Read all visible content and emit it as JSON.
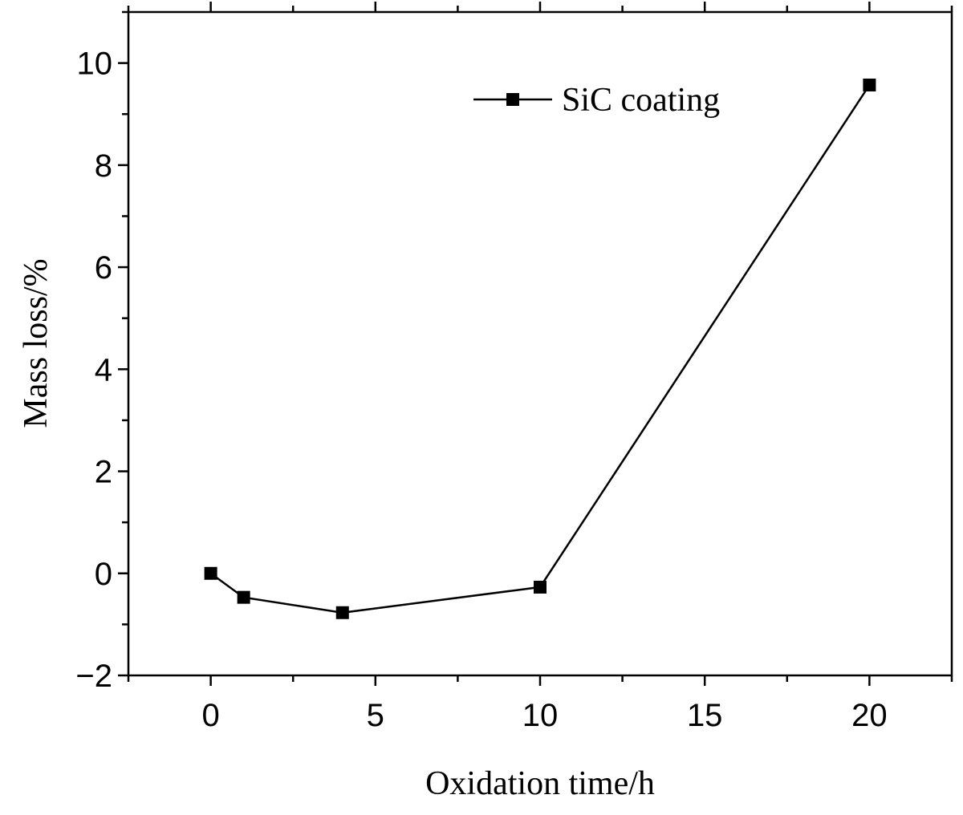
{
  "chart_data": {
    "type": "line",
    "title": "",
    "xlabel": "Oxidation time/h",
    "ylabel": "Mass loss/%",
    "xlim": [
      -2.5,
      22.5
    ],
    "ylim": [
      -2,
      11
    ],
    "x_ticks": [
      0,
      5,
      10,
      15,
      20
    ],
    "x_tick_labels": [
      "0",
      "5",
      "10",
      "15",
      "20"
    ],
    "y_ticks": [
      -2,
      0,
      2,
      4,
      6,
      8,
      10
    ],
    "y_tick_labels": [
      "−2",
      "0",
      "2",
      "4",
      "6",
      "8",
      "10"
    ],
    "grid": false,
    "legend_position": "top-right",
    "series": [
      {
        "name": "SiC coating",
        "marker": "square",
        "color": "#000000",
        "x": [
          0,
          1,
          4,
          10,
          20
        ],
        "y": [
          0,
          -0.47,
          -0.77,
          -0.27,
          9.57
        ]
      }
    ]
  }
}
